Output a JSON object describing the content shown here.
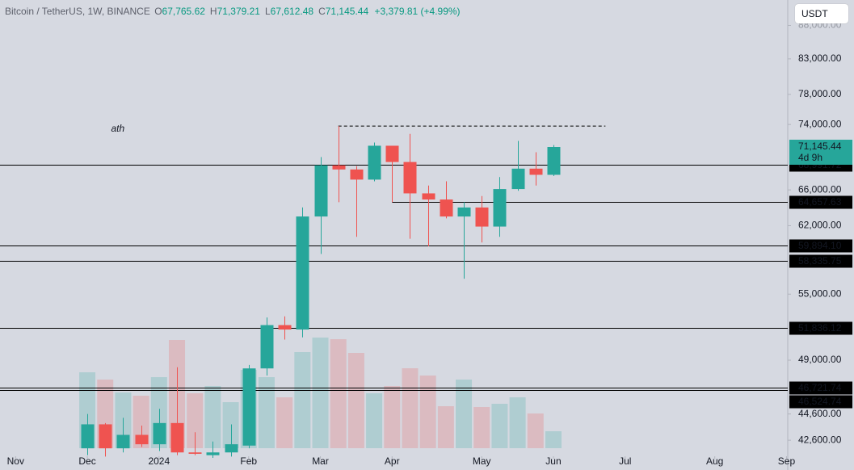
{
  "chart_data": {
    "type": "candlestick",
    "title": "Bitcoin / TetherUS, 1W, BINANCE",
    "ohlc_header": [
      {
        "key": "O",
        "label": "67,765.62"
      },
      {
        "key": "H",
        "label": "71,379.21"
      },
      {
        "key": "L",
        "label": "67,612.48"
      },
      {
        "key": "C",
        "label": "71,145.44"
      }
    ],
    "change": "+3,379.81 (+4.99%)",
    "currency": "USDT",
    "log_scale": true,
    "grid": false,
    "up_color": "#26a69a",
    "down_color": "#ef5350",
    "x": [
      0,
      1,
      2,
      3,
      4,
      5,
      6,
      7,
      8,
      9,
      10,
      11,
      12,
      13,
      14,
      15,
      16,
      17,
      18,
      19,
      20,
      21,
      22,
      23,
      24,
      25,
      26
    ],
    "open": [
      42000,
      43800,
      42000,
      43000,
      42300,
      43900,
      41700,
      41500,
      41700,
      42200,
      48300,
      52100,
      51700,
      63000,
      68900,
      68400,
      67200,
      71300,
      69300,
      65600,
      64900,
      63000,
      64000,
      61900,
      66100,
      68500,
      67765.62
    ],
    "high": [
      44600,
      43900,
      44300,
      43700,
      45000,
      48400,
      43200,
      42500,
      43800,
      48600,
      52800,
      52900,
      64000,
      69900,
      73800,
      68800,
      71700,
      71300,
      72800,
      66500,
      67000,
      64600,
      65300,
      67500,
      71900,
      70500,
      71379.21
    ],
    "low": [
      41500,
      41400,
      41700,
      42100,
      41800,
      41500,
      41500,
      41300,
      41400,
      42000,
      47700,
      50800,
      51000,
      59000,
      64600,
      60800,
      67000,
      64600,
      60600,
      59800,
      62800,
      56500,
      60200,
      60800,
      65900,
      66500,
      67612.48
    ],
    "close": [
      43800,
      42000,
      43000,
      42300,
      43900,
      41700,
      41600,
      41700,
      42300,
      48300,
      52100,
      51700,
      63000,
      68900,
      68400,
      67200,
      71300,
      69300,
      65600,
      64900,
      63000,
      64000,
      61900,
      66100,
      68500,
      67765.62,
      71145.44
    ],
    "volume": [
      94,
      85,
      69,
      65,
      88,
      134,
      68,
      77,
      57,
      97,
      88,
      63,
      119,
      137,
      135,
      118,
      68,
      77,
      99,
      90,
      52,
      85,
      51,
      55,
      63,
      43,
      21
    ],
    "xlim": [
      -4.87,
      39.07
    ],
    "xticks": [
      {
        "value": -4,
        "label": "Nov"
      },
      {
        "value": 0,
        "label": "Dec"
      },
      {
        "value": 4,
        "label": "2024"
      },
      {
        "value": 9,
        "label": "Feb"
      },
      {
        "value": 13,
        "label": "Mar"
      },
      {
        "value": 17,
        "label": "Apr"
      },
      {
        "value": 22,
        "label": "May"
      },
      {
        "value": 26,
        "label": "Jun"
      },
      {
        "value": 30,
        "label": "Jul"
      },
      {
        "value": 35,
        "label": "Aug"
      },
      {
        "value": 39,
        "label": "Sep"
      }
    ],
    "ylim": [
      41420,
      92000
    ],
    "yticks": [
      {
        "value": 88000,
        "label": "88,000.00"
      },
      {
        "value": 83000,
        "label": "83,000.00"
      },
      {
        "value": 78000,
        "label": "78,000.00"
      },
      {
        "value": 74000,
        "label": "74,000.00"
      },
      {
        "value": 66000,
        "label": "66,000.00"
      },
      {
        "value": 62000,
        "label": "62,000.00"
      },
      {
        "value": 55000,
        "label": "55,000.00"
      },
      {
        "value": 49000,
        "label": "49,000.00"
      },
      {
        "value": 44600,
        "label": "44,600.00"
      },
      {
        "value": 42600,
        "label": "42,600.00"
      }
    ],
    "levels": [
      {
        "value": 68991.72,
        "label": "68,991.72"
      },
      {
        "value": 64657.63,
        "label": "64,657.63",
        "start": 17
      },
      {
        "value": 59894.1,
        "label": "59,894.10"
      },
      {
        "value": 58335.75,
        "label": "58,335.75"
      },
      {
        "value": 51836.12,
        "label": "51,836.12"
      },
      {
        "value": 46721.74,
        "label": "46,721.74"
      },
      {
        "value": 46524.74,
        "label": "46,524.74"
      }
    ],
    "last_price": {
      "value": 71145.44,
      "label": "71,145.44",
      "countdown": "4d 9h"
    },
    "ath_line": {
      "value": 73800,
      "start": 14,
      "end": 28.9
    },
    "annotations": [
      {
        "text": "ath",
        "x": 1.7,
        "y": 73400
      }
    ]
  }
}
